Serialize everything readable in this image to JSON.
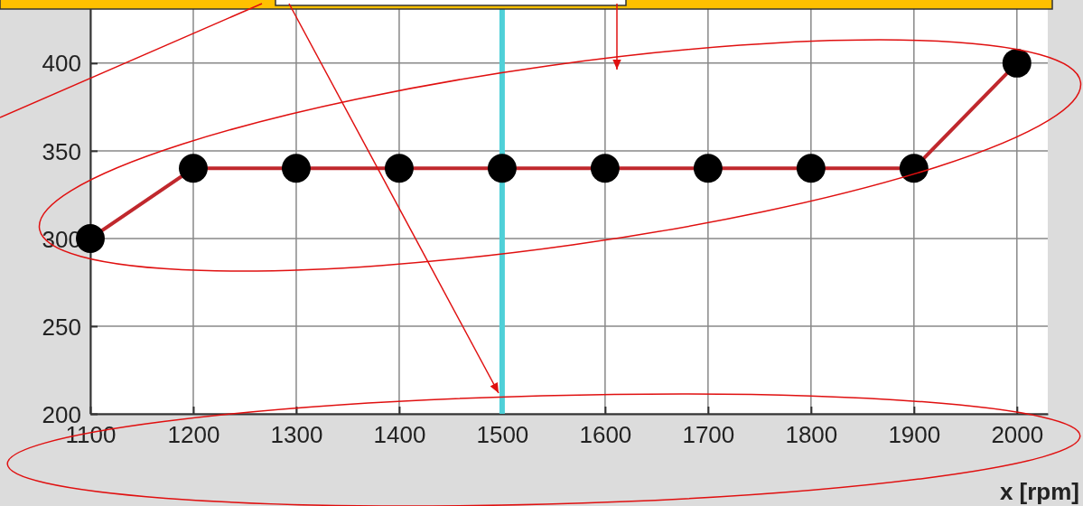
{
  "chart_data": {
    "type": "line",
    "xlabel": "x [rpm]",
    "x": [
      1100,
      1200,
      1300,
      1400,
      1500,
      1600,
      1700,
      1800,
      1900,
      2000
    ],
    "series": [
      {
        "color": "#c0282d",
        "values": [
          300,
          340,
          340,
          340,
          340,
          340,
          340,
          340,
          340,
          400
        ]
      }
    ],
    "xlim": [
      1100,
      2030
    ],
    "ylim": [
      200,
      436
    ],
    "xticks": [
      1100,
      1200,
      1300,
      1400,
      1500,
      1600,
      1700,
      1800,
      1900,
      2000
    ],
    "yticks": [
      200,
      250,
      300,
      350,
      400
    ],
    "grid": true,
    "marker": "circle",
    "line_style": "solid",
    "ref_lines": [
      {
        "axis": "x",
        "value": 1500,
        "color": "#4fd0d8"
      }
    ]
  }
}
